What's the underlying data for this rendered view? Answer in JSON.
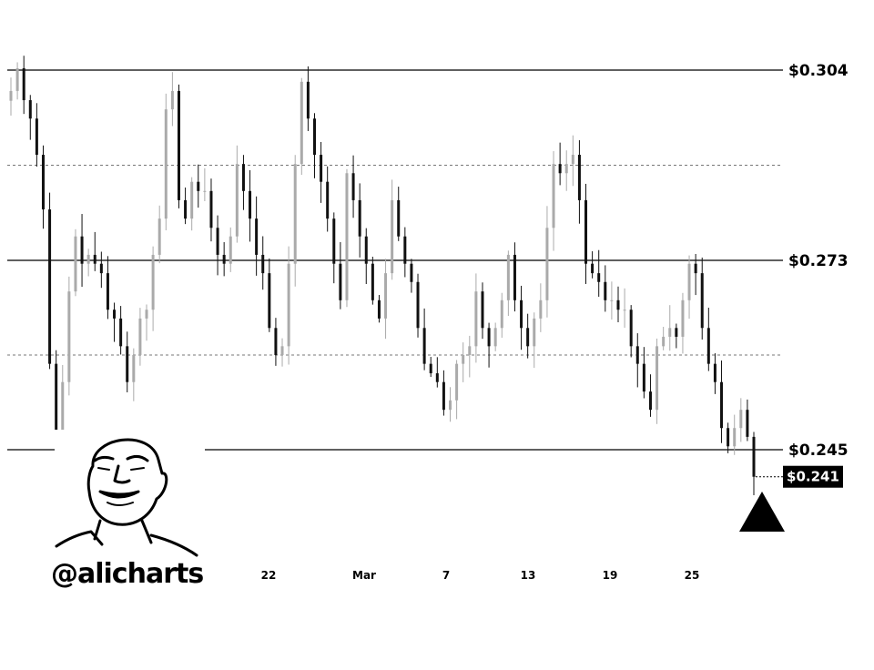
{
  "chart_data": {
    "type": "candlestick",
    "title": "",
    "xlabel": "",
    "ylabel": "",
    "x_ticks": [
      "22",
      "Mar",
      "7",
      "13",
      "19",
      "25"
    ],
    "levels": [
      {
        "label": "$0.304",
        "value": 0.304,
        "style": "solid"
      },
      {
        "label": "$0.273",
        "value": 0.273,
        "style": "solid"
      },
      {
        "label": "$0.245",
        "value": 0.245,
        "style": "solid"
      }
    ],
    "dotted_levels": [
      0.2885,
      0.259
    ],
    "current_price": {
      "label": "$0.241",
      "value": 0.241
    },
    "marker": "up-triangle-icon",
    "colors": {
      "up": "#aaaaaa",
      "down": "#111111",
      "label_box": "#000000",
      "label_text": "#ffffff"
    },
    "grid": false,
    "open": 0.299,
    "closes": [
      0.3006,
      0.3043,
      0.2991,
      0.2961,
      0.2902,
      0.2813,
      0.2577,
      0.2442,
      0.255,
      0.2684,
      0.2769,
      0.2725,
      0.2739,
      0.2725,
      0.2711,
      0.2657,
      0.2644,
      0.2603,
      0.255,
      0.259,
      0.2644,
      0.2657,
      0.2739,
      0.2798,
      0.2976,
      0.3006,
      0.2828,
      0.2798,
      0.2858,
      0.2843,
      0.2843,
      0.2783,
      0.2739,
      0.2725,
      0.2769,
      0.2887,
      0.2843,
      0.2798,
      0.2739,
      0.2711,
      0.263,
      0.259,
      0.2603,
      0.2725,
      0.2887,
      0.3021,
      0.2961,
      0.2902,
      0.2858,
      0.2798,
      0.2725,
      0.2671,
      0.2872,
      0.2828,
      0.2769,
      0.2725,
      0.2671,
      0.2644,
      0.2711,
      0.2828,
      0.2769,
      0.2725,
      0.2698,
      0.263,
      0.2577,
      0.2563,
      0.255,
      0.2509,
      0.2523,
      0.2577,
      0.259,
      0.2603,
      0.2684,
      0.263,
      0.2603,
      0.263,
      0.2671,
      0.2739,
      0.2671,
      0.263,
      0.2603,
      0.2644,
      0.2671,
      0.2783,
      0.2887,
      0.2872,
      0.2887,
      0.2902,
      0.2828,
      0.2725,
      0.2711,
      0.2698,
      0.2671,
      0.2671,
      0.2657,
      0.2657,
      0.2603,
      0.2577,
      0.2536,
      0.2509,
      0.2603,
      0.2617,
      0.263,
      0.2617,
      0.2671,
      0.2725,
      0.2711,
      0.263,
      0.2577,
      0.255,
      0.2482,
      0.2455,
      0.2482,
      0.2509,
      0.2469,
      0.241
    ]
  },
  "branding": {
    "handle": "@alicharts",
    "logo": "avatar-face-illustration"
  }
}
